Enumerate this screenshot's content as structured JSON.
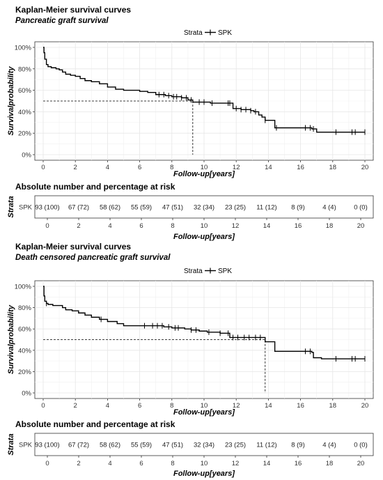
{
  "chart_data": [
    {
      "type": "line",
      "title": "Kaplan-Meier  survival curves",
      "subtitle": "Pancreatic  graft survival",
      "xlabel": "Follow-up[years]",
      "ylabel": "Survivalprobability",
      "legend_title": "Strata",
      "legend_placement": "top-center",
      "grid": true,
      "xlim": [
        0,
        20
      ],
      "ylim": [
        0,
        1
      ],
      "xticks": [
        0,
        2,
        4,
        6,
        8,
        10,
        12,
        14,
        16,
        18,
        20
      ],
      "yticks": [
        0,
        0.2,
        0.4,
        0.6,
        0.8,
        1.0
      ],
      "ytick_labels": [
        "0%",
        "20%",
        "40%",
        "60%",
        "80%",
        "100%"
      ],
      "median_survival": 9.3,
      "series": [
        {
          "name": "SPK",
          "color": "#000000",
          "step_times": [
            0,
            0.05,
            0.1,
            0.2,
            0.3,
            0.5,
            0.8,
            1.0,
            1.2,
            1.4,
            1.7,
            2.0,
            2.3,
            2.6,
            3.0,
            3.5,
            4.0,
            4.5,
            5.0,
            6.0,
            6.5,
            7.0,
            7.6,
            8.0,
            8.6,
            9.0,
            9.3,
            10.4,
            11.8,
            12.3,
            12.9,
            13.1,
            13.4,
            13.6,
            13.8,
            14.4,
            16.7,
            17.0,
            20.0
          ],
          "step_surv": [
            1.0,
            0.95,
            0.89,
            0.84,
            0.82,
            0.81,
            0.8,
            0.79,
            0.77,
            0.75,
            0.74,
            0.73,
            0.71,
            0.69,
            0.68,
            0.66,
            0.63,
            0.61,
            0.6,
            0.59,
            0.58,
            0.56,
            0.55,
            0.54,
            0.53,
            0.51,
            0.49,
            0.48,
            0.43,
            0.42,
            0.41,
            0.4,
            0.37,
            0.35,
            0.32,
            0.25,
            0.24,
            0.21,
            0.21
          ],
          "censor_times": [
            7.2,
            7.5,
            7.8,
            8.1,
            8.3,
            8.6,
            8.9,
            9.2,
            9.7,
            10.0,
            10.5,
            11.5,
            11.6,
            12.0,
            12.3,
            12.6,
            12.9,
            13.2,
            13.8,
            14.5,
            16.3,
            16.6,
            16.8,
            18.2,
            19.2,
            19.4,
            20.0
          ]
        }
      ]
    },
    {
      "type": "table",
      "title": "Absolute number and percentage at risk",
      "ylabel": "Strata",
      "xlabel": "Follow-up[years]",
      "row_label": "SPK",
      "xticks": [
        0,
        2,
        4,
        6,
        8,
        10,
        12,
        14,
        16,
        18,
        20
      ],
      "times": [
        0,
        2,
        4,
        6,
        8,
        10,
        12,
        14,
        16,
        18,
        20
      ],
      "values": [
        "93 (100)",
        "67 (72)",
        "58 (62)",
        "55 (59)",
        "47 (51)",
        "32 (34)",
        "23 (25)",
        "11 (12)",
        "8 (9)",
        "4 (4)",
        "0 (0)"
      ]
    },
    {
      "type": "line",
      "title": "Kaplan-Meier  survival curves",
      "subtitle": "Death censored pancreatic graft survival",
      "xlabel": "Follow-up[years]",
      "ylabel": "Survivalprobability",
      "legend_title": "Strata",
      "legend_placement": "top-center",
      "grid": true,
      "xlim": [
        0,
        20
      ],
      "ylim": [
        0,
        1
      ],
      "xticks": [
        0,
        2,
        4,
        6,
        8,
        10,
        12,
        14,
        16,
        18,
        20
      ],
      "yticks": [
        0,
        0.2,
        0.4,
        0.6,
        0.8,
        1.0
      ],
      "ytick_labels": [
        "0%",
        "20%",
        "40%",
        "60%",
        "80%",
        "100%"
      ],
      "median_survival": 13.8,
      "series": [
        {
          "name": "SPK",
          "color": "#000000",
          "step_times": [
            0,
            0.05,
            0.1,
            0.2,
            0.3,
            0.6,
            1.0,
            1.2,
            1.4,
            1.8,
            2.2,
            2.6,
            3.0,
            3.5,
            4.0,
            4.6,
            5.0,
            6.5,
            7.5,
            8.0,
            8.8,
            9.2,
            9.7,
            10.2,
            11.0,
            11.6,
            13.8,
            14.4,
            16.7,
            16.8,
            17.3,
            20.0
          ],
          "step_surv": [
            1.0,
            0.91,
            0.86,
            0.84,
            0.83,
            0.82,
            0.82,
            0.8,
            0.78,
            0.77,
            0.75,
            0.73,
            0.71,
            0.69,
            0.67,
            0.65,
            0.63,
            0.63,
            0.62,
            0.61,
            0.6,
            0.59,
            0.58,
            0.57,
            0.56,
            0.52,
            0.48,
            0.39,
            0.38,
            0.33,
            0.32,
            0.32
          ],
          "censor_times": [
            0.2,
            3.6,
            6.3,
            6.8,
            7.1,
            7.4,
            7.8,
            8.2,
            8.4,
            9.2,
            9.5,
            10.3,
            11.0,
            11.5,
            11.8,
            12.1,
            12.5,
            12.8,
            13.2,
            13.5,
            16.3,
            16.6,
            18.2,
            19.2,
            19.4,
            20.0
          ]
        }
      ]
    },
    {
      "type": "table",
      "title": "Absolute number and percentage at risk",
      "ylabel": "Strata",
      "xlabel": "Follow-up[years]",
      "row_label": "SPK",
      "xticks": [
        0,
        2,
        4,
        6,
        8,
        10,
        12,
        14,
        16,
        18,
        20
      ],
      "times": [
        0,
        2,
        4,
        6,
        8,
        10,
        12,
        14,
        16,
        18,
        20
      ],
      "values": [
        "93 (100)",
        "67 (72)",
        "58 (62)",
        "55 (59)",
        "47 (51)",
        "32 (34)",
        "23 (25)",
        "11 (12)",
        "8 (9)",
        "4 (4)",
        "0 (0)"
      ]
    }
  ]
}
